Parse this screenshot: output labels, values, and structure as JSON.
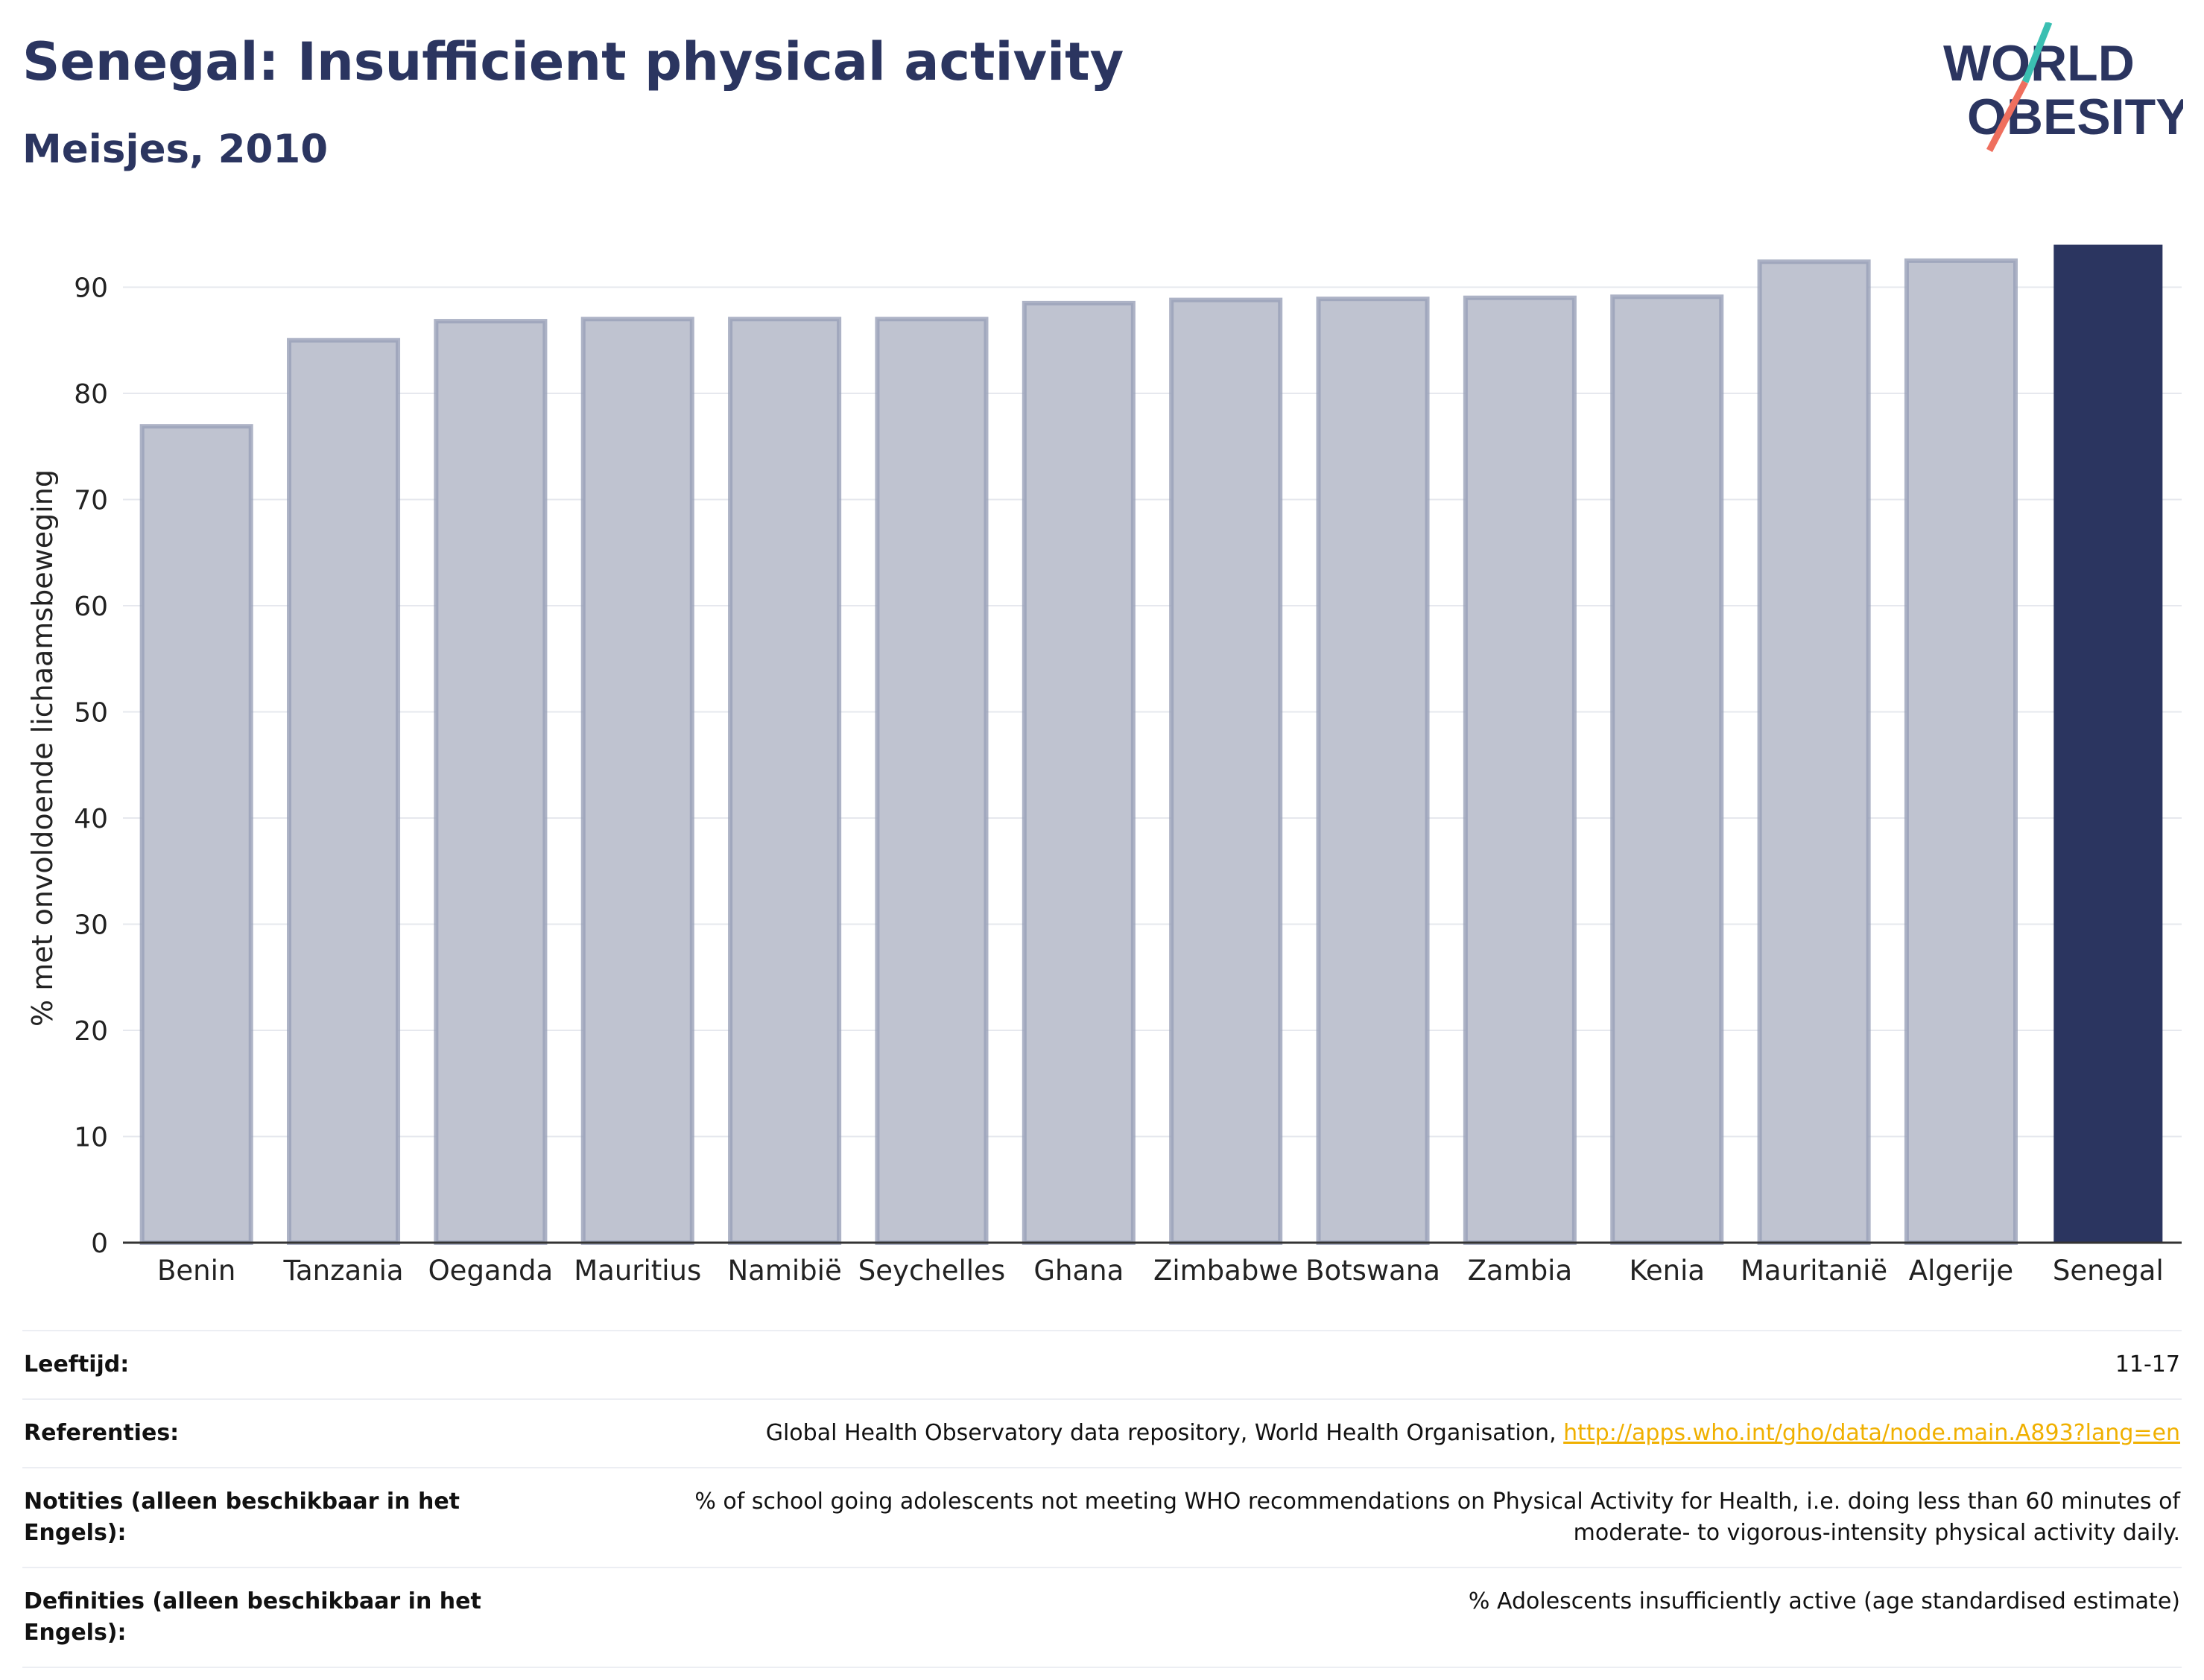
{
  "header": {
    "title": "Senegal: Insufficient physical activity",
    "subtitle": "Meisjes, 2010"
  },
  "logo": {
    "line1": "WORLD",
    "line2": "OBESITY"
  },
  "colors": {
    "title": "#2b3560",
    "bar_default": "#bfc3d0",
    "bar_border": "#98a0b8",
    "bar_highlight": "#2b3560",
    "link": "#f0b000",
    "logo_teal": "#3bbfb2",
    "logo_coral": "#ef6f5e"
  },
  "chart_data": {
    "type": "bar",
    "categories": [
      "Benin",
      "Tanzania",
      "Oeganda",
      "Mauritius",
      "Namibië",
      "Seychelles",
      "Ghana",
      "Zimbabwe",
      "Botswana",
      "Zambia",
      "Kenia",
      "Mauritanië",
      "Algerije",
      "Senegal"
    ],
    "values": [
      76.9,
      85.0,
      86.8,
      87.0,
      87.0,
      87.0,
      88.5,
      88.8,
      88.9,
      89.0,
      89.1,
      92.4,
      92.5,
      94.0
    ],
    "highlight": "Senegal",
    "ylabel": "% met onvoldoende lichaamsbeweging",
    "ylim": [
      0,
      96
    ],
    "yticks": [
      0,
      10,
      20,
      30,
      40,
      50,
      60,
      70,
      80,
      90
    ],
    "grid": true
  },
  "info": {
    "age_label": "Leeftijd:",
    "age_value": "11-17",
    "ref_label": "Referenties:",
    "ref_text": "Global Health Observatory data repository, World Health Organisation, ",
    "ref_link": "http://apps.who.int/gho/data/node.main.A893?lang=en",
    "notes_label": "Notities (alleen beschikbaar in het Engels):",
    "notes_value": "% of school going adolescents not meeting WHO recommendations on Physical Activity for Health, i.e. doing less than 60 minutes of moderate- to vigorous-intensity physical activity daily.",
    "def_label": "Definities (alleen beschikbaar in het Engels):",
    "def_value": "% Adolescents insufficiently active (age standardised estimate)"
  }
}
